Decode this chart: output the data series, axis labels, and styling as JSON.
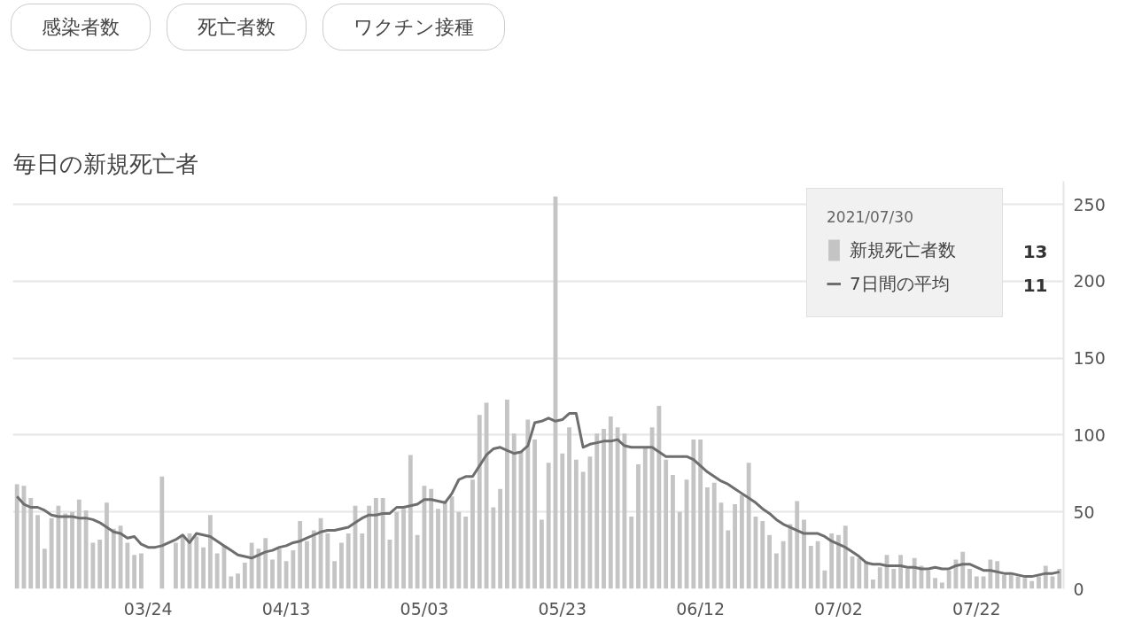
{
  "chart_data": {
    "type": "bar",
    "title": "毎日の新規死亡者",
    "categories": [
      null,
      null,
      null,
      null,
      null,
      null,
      null,
      null,
      null,
      null,
      null,
      null,
      null,
      null,
      null,
      null,
      null,
      null,
      null,
      "03/24",
      null,
      null,
      null,
      null,
      null,
      null,
      null,
      null,
      null,
      null,
      null,
      null,
      null,
      null,
      null,
      null,
      null,
      null,
      null,
      "04/13",
      null,
      null,
      null,
      null,
      null,
      null,
      null,
      null,
      null,
      null,
      null,
      null,
      null,
      null,
      null,
      null,
      null,
      null,
      null,
      "05/03",
      null,
      null,
      null,
      null,
      null,
      null,
      null,
      null,
      null,
      null,
      null,
      null,
      null,
      null,
      null,
      null,
      null,
      null,
      null,
      "05/23",
      null,
      null,
      null,
      null,
      null,
      null,
      null,
      null,
      null,
      null,
      null,
      null,
      null,
      null,
      null,
      null,
      null,
      null,
      null,
      "06/12",
      null,
      null,
      null,
      null,
      null,
      null,
      null,
      null,
      null,
      null,
      null,
      null,
      null,
      null,
      null,
      null,
      null,
      null,
      null,
      "07/02",
      null,
      null,
      null,
      null,
      null,
      null,
      null,
      null,
      null,
      null,
      null,
      null,
      null,
      null,
      null,
      null,
      null,
      null,
      null,
      "07/22",
      null,
      null,
      null,
      null,
      null,
      null,
      null,
      null,
      null,
      null,
      null,
      null
    ],
    "series": [
      {
        "name": "新規死亡者数",
        "color": "#c4c4c4",
        "values": [
          68,
          67,
          59,
          48,
          26,
          46,
          54,
          49,
          50,
          58,
          51,
          30,
          32,
          56,
          39,
          41,
          30,
          22,
          23,
          0,
          0,
          73,
          0,
          30,
          35,
          36,
          34,
          27,
          48,
          23,
          28,
          8,
          10,
          17,
          30,
          26,
          33,
          19,
          26,
          18,
          25,
          44,
          31,
          38,
          46,
          36,
          18,
          30,
          36,
          54,
          36,
          54,
          59,
          59,
          32,
          50,
          52,
          87,
          35,
          67,
          65,
          52,
          57,
          60,
          50,
          47,
          71,
          113,
          121,
          53,
          65,
          123,
          101,
          89,
          110,
          97,
          45,
          82,
          255,
          88,
          105,
          84,
          76,
          86,
          101,
          104,
          112,
          105,
          101,
          47,
          81,
          92,
          105,
          119,
          84,
          74,
          50,
          71,
          97,
          97,
          66,
          69,
          56,
          38,
          55,
          61,
          82,
          47,
          44,
          35,
          23,
          31,
          42,
          57,
          45,
          28,
          31,
          12,
          36,
          35,
          41,
          21,
          20,
          18,
          6,
          14,
          22,
          13,
          22,
          13,
          20,
          15,
          12,
          7,
          4,
          12,
          19,
          24,
          13,
          8,
          8,
          19,
          18,
          9,
          9,
          8,
          7,
          5,
          8,
          15,
          8,
          13
        ]
      },
      {
        "name": "7日間の平均",
        "type": "line",
        "color": "#6e6e6e",
        "values": [
          60,
          55,
          53,
          53,
          51,
          48,
          47,
          47,
          47,
          46,
          46,
          45,
          43,
          40,
          37,
          36,
          33,
          34,
          29,
          27,
          27,
          28,
          30,
          32,
          35,
          30,
          36,
          35,
          34,
          31,
          28,
          25,
          22,
          21,
          20,
          22,
          24,
          25,
          27,
          28,
          30,
          31,
          33,
          35,
          37,
          38,
          38,
          39,
          40,
          43,
          46,
          48,
          48,
          49,
          49,
          53,
          53,
          54,
          55,
          58,
          58,
          57,
          56,
          62,
          71,
          73,
          73,
          80,
          87,
          91,
          92,
          90,
          88,
          89,
          93,
          108,
          109,
          111,
          109,
          110,
          114,
          114,
          92,
          94,
          95,
          96,
          96,
          97,
          93,
          92,
          92,
          92,
          92,
          89,
          86,
          86,
          86,
          86,
          84,
          80,
          76,
          73,
          70,
          68,
          65,
          62,
          59,
          56,
          52,
          49,
          45,
          42,
          40,
          38,
          36,
          36,
          36,
          34,
          31,
          29,
          27,
          24,
          21,
          17,
          16,
          16,
          15,
          15,
          15,
          14,
          14,
          13,
          13,
          14,
          13,
          13,
          15,
          16,
          16,
          14,
          12,
          12,
          11,
          10,
          10,
          9,
          8,
          8,
          9,
          10,
          10,
          11
        ]
      }
    ],
    "ylim": [
      0,
      265
    ],
    "yticks": [
      0,
      50,
      100,
      150,
      200,
      250
    ],
    "grid": "y",
    "legend": "top right",
    "legend_title": "2021/07/30",
    "annotations": [
      "感染者数",
      "死亡者数",
      "ワクチン接種",
      "13",
      "11"
    ]
  }
}
